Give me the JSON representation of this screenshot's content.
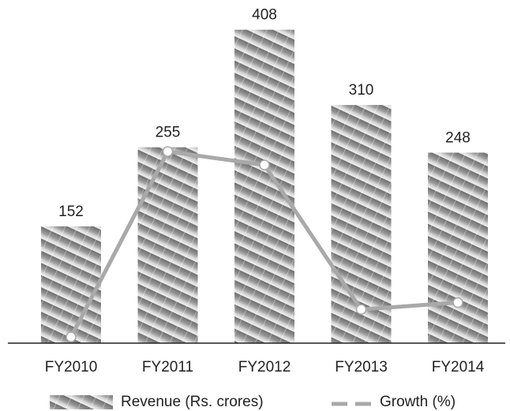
{
  "chart_data": {
    "type": "bar",
    "categories": [
      "FY2010",
      "FY2011",
      "FY2012",
      "FY2013",
      "FY2014"
    ],
    "series": [
      {
        "name": "Revenue (Rs. crores)",
        "type": "bar",
        "color": "#8a8a8a",
        "values": [
          152,
          255,
          408,
          310,
          248
        ]
      },
      {
        "name": "Growth (%)",
        "type": "line",
        "axis": "y2",
        "color": "#a9a9a9",
        "values": [
          -40,
          67.8,
          60,
          -24,
          -20
        ]
      }
    ],
    "ylim": [
      0,
      420
    ],
    "y2lim": [
      -43.6,
      144
    ],
    "legend": "bottom"
  }
}
